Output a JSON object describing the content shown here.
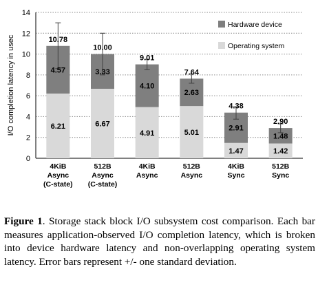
{
  "chart_data": {
    "type": "bar",
    "stacked": true,
    "ylabel": "I/O completion latency in usec",
    "ylim": [
      0,
      14
    ],
    "yticks": [
      0,
      2,
      4,
      6,
      8,
      10,
      12,
      14
    ],
    "grid": "horizontal dotted",
    "legend_position": "top-right",
    "categories": [
      [
        "4KiB",
        "Async",
        "(C-state)"
      ],
      [
        "512B",
        "Async",
        "(C-state)"
      ],
      [
        "4KiB",
        "Async"
      ],
      [
        "512B",
        "Async"
      ],
      [
        "4KiB",
        "Sync"
      ],
      [
        "512B",
        "Sync"
      ]
    ],
    "series": [
      {
        "name": "Operating system",
        "color": "#d9d9d9",
        "values": [
          6.21,
          6.67,
          4.91,
          5.01,
          1.47,
          1.42
        ]
      },
      {
        "name": "Hardware device",
        "color": "#7f7f7f",
        "values": [
          4.57,
          3.33,
          4.1,
          2.63,
          2.91,
          1.48
        ]
      }
    ],
    "totals": [
      10.78,
      10.0,
      9.01,
      7.64,
      4.38,
      2.9
    ],
    "total_labels": [
      "10.78",
      "10.00",
      "9.01",
      "7.64",
      "4.38",
      "2.90"
    ],
    "os_labels": [
      "6.21",
      "6.67",
      "4.91",
      "5.01",
      "1.47",
      "1.42"
    ],
    "hw_labels": [
      "4.57",
      "3.33",
      "4.10",
      "2.63",
      "2.91",
      "1.48"
    ],
    "error_bars": [
      [
        8.6,
        13.0
      ],
      [
        8.0,
        12.0
      ],
      [
        8.5,
        9.5
      ],
      [
        7.2,
        8.1
      ],
      [
        3.75,
        4.95
      ],
      [
        2.45,
        3.3
      ]
    ]
  },
  "caption": {
    "label": "Figure 1",
    "text": ". Storage stack block I/O subsystem cost comparison. Each bar measures application-observed I/O completion latency, which is broken into device hardware latency and non-overlapping operating system latency. Error bars represent +/- one standard deviation."
  }
}
